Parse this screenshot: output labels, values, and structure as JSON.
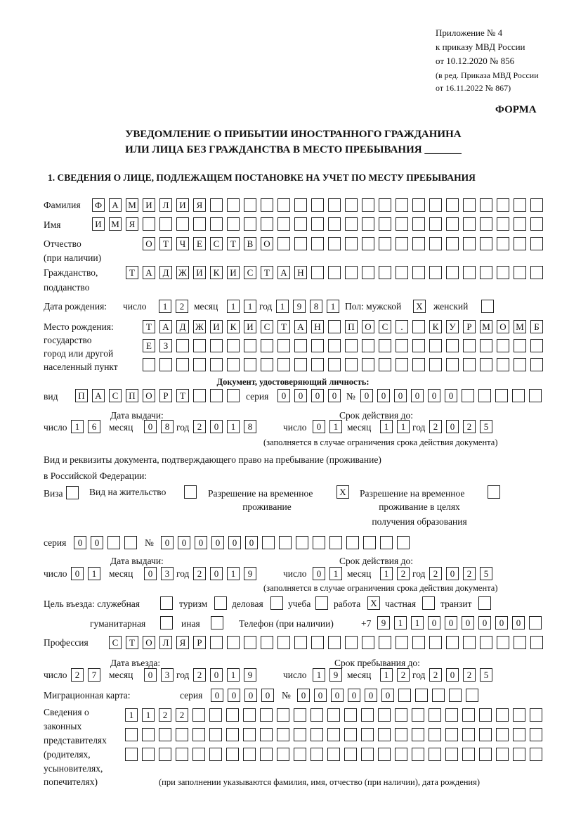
{
  "header": {
    "appendix": "Приложение № 4",
    "order": "к приказу МВД России",
    "order_date": "от 10.12.2020 № 856",
    "revision": "(в ред. Приказа МВД России",
    "revision_date": "от 16.11.2022 № 867)",
    "form": "ФОРМА",
    "title_line1": "УВЕДОМЛЕНИЕ О ПРИБЫТИИ ИНОСТРАННОГО ГРАЖДАНИНА",
    "title_line2": "ИЛИ ЛИЦА БЕЗ ГРАЖДАНСТВА В МЕСТО ПРЕБЫВАНИЯ _______",
    "section1": "1. СВЕДЕНИЯ О ЛИЦЕ, ПОДЛЕЖАЩЕМ ПОСТАНОВКЕ НА УЧЕТ ПО МЕСТУ ПРЕБЫВАНИЯ"
  },
  "labels": {
    "surname": "Фамилия",
    "name": "Имя",
    "patronymic": "Отчество",
    "patronymic_note": "(при наличии)",
    "citizenship": "Гражданство,",
    "citizenship2": "подданство",
    "birth_date": "Дата рождения:",
    "day": "число",
    "month": "месяц",
    "year": "год",
    "sex": "Пол: мужской",
    "female": "женский",
    "birthplace": "Место рождения:",
    "birthplace2": "государство",
    "birthplace3": "город или другой",
    "birthplace4": "населенный пункт",
    "id_doc": "Документ, удостоверяющий личность:",
    "kind": "вид",
    "series": "серия",
    "number": "№",
    "issue_date": "Дата выдачи:",
    "valid_until": "Срок действия до:",
    "validity_note": "(заполняется в случае ограничения срока действия документа)",
    "right_doc1": "Вид и реквизиты документа, подтверждающего право на пребывание (проживание)",
    "right_doc2": "в Российской Федерации:",
    "visa": "Виза",
    "residence_permit": "Вид на жительство",
    "temp_permit1": "Разрешение на временное",
    "temp_permit2": "проживание",
    "edu_permit1": "Разрешение на временное",
    "edu_permit2": "проживание в целях",
    "edu_permit3": "получения образования",
    "purpose": "Цель въезда: служебная",
    "tourism": "туризм",
    "business": "деловая",
    "study": "учеба",
    "work": "работа",
    "private": "частная",
    "transit": "транзит",
    "humanitarian": "гуманитарная",
    "other": "иная",
    "phone": "Телефон (при наличии)",
    "phone_prefix": "+7",
    "profession": "Профессия",
    "entry_date": "Дата въезда:",
    "stay_until": "Срок пребывания до:",
    "migration_card": "Миграционная карта:",
    "reps1": "Сведения о",
    "reps2": "законных",
    "reps3": "представителях",
    "reps4": "(родителях,",
    "reps5": "усыновителях,",
    "reps6": "попечителях)",
    "reps_note": "(при заполнении указываются фамилия, имя, отчество (при наличии), дата рождения)"
  },
  "values": {
    "surname": "ФАМИЛИЯ",
    "name": "ИМЯ",
    "patronymic": "ОТЧЕСТВО",
    "citizenship": "ТАДЖИКИСТАН",
    "birth_day": "12",
    "birth_month": "11",
    "birth_year": "1981",
    "sex_male": "X",
    "sex_female": "",
    "birthplace_line1": "ТАДЖИКИСТАН ПОС. КУРМОМБ",
    "birthplace_line2": "ЕЗ",
    "id_kind": "ПАСПОРТ",
    "id_series": "0000",
    "id_number": "000000",
    "id_issue_day": "16",
    "id_issue_month": "08",
    "id_issue_year": "2018",
    "id_valid_day": "01",
    "id_valid_month": "11",
    "id_valid_year": "2025",
    "visa": "",
    "residence_permit": "",
    "temp_permit": "X",
    "edu_permit": "",
    "right_series": "00",
    "right_number": "000000",
    "right_issue_day": "01",
    "right_issue_month": "03",
    "right_issue_year": "2019",
    "right_valid_day": "01",
    "right_valid_month": "12",
    "right_valid_year": "2025",
    "purpose_official": "",
    "purpose_tourism": "",
    "purpose_business": "",
    "purpose_study": "",
    "purpose_work": "X",
    "purpose_private": "",
    "purpose_transit": "",
    "purpose_humanitarian": "",
    "purpose_other": "",
    "phone": "911000000",
    "profession": "СТОЛЯР",
    "entry_day": "27",
    "entry_month": "03",
    "entry_year": "2019",
    "stay_day": "19",
    "stay_month": "12",
    "stay_year": "2025",
    "mc_series": "0000",
    "mc_number": "000000",
    "reps_line1": "1122"
  }
}
